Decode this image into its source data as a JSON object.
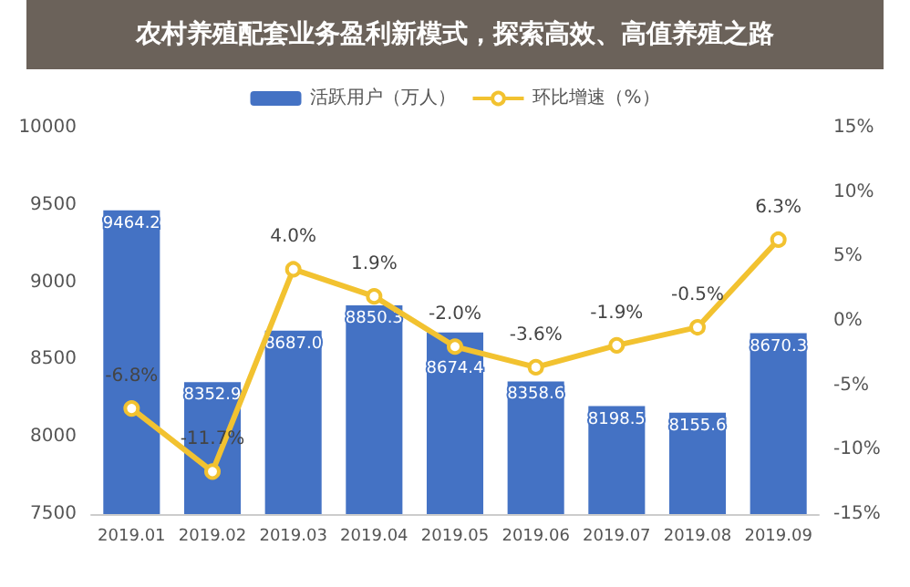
{
  "chart_data": {
    "type": "bar",
    "title": "农村养殖配套业务盈利新模式，探索高效、高值养殖之路",
    "categories": [
      "2019.01",
      "2019.02",
      "2019.03",
      "2019.04",
      "2019.05",
      "2019.06",
      "2019.07",
      "2019.08",
      "2019.09"
    ],
    "series": [
      {
        "name": "活跃用户（万人）",
        "type": "bar",
        "color": "#4472c4",
        "values": [
          9464.2,
          8352.9,
          8687.0,
          8850.3,
          8674.4,
          8358.6,
          8198.5,
          8155.6,
          8670.3
        ],
        "value_labels": [
          "9464.2",
          "8352.9",
          "8687.0",
          "8850.3",
          "8674.4",
          "8358.6",
          "8198.5",
          "8155.6",
          "8670.3"
        ]
      },
      {
        "name": "环比增速（%）",
        "type": "line",
        "axis": "y2",
        "color": "#f2c230",
        "marker": "circle",
        "values": [
          -6.8,
          -11.7,
          4.0,
          1.9,
          -2.0,
          -3.6,
          -1.9,
          -0.5,
          6.3
        ],
        "value_labels": [
          "-6.8%",
          "-11.7%",
          "4.0%",
          "1.9%",
          "-2.0%",
          "-3.6%",
          "-1.9%",
          "-0.5%",
          "6.3%"
        ]
      }
    ],
    "ylim": [
      7500,
      10000
    ],
    "yticks": [
      7500,
      8000,
      8500,
      9000,
      9500,
      10000
    ],
    "y2lim": [
      -15,
      15
    ],
    "y2ticks": [
      {
        "value": -15,
        "label": "-15%"
      },
      {
        "value": -10,
        "label": "-10%"
      },
      {
        "value": -5,
        "label": "-5%"
      },
      {
        "value": 0,
        "label": "0%"
      },
      {
        "value": 5,
        "label": "5%"
      },
      {
        "value": 10,
        "label": "10%"
      },
      {
        "value": 15,
        "label": "15%"
      }
    ],
    "legend": "top",
    "grid": false
  }
}
